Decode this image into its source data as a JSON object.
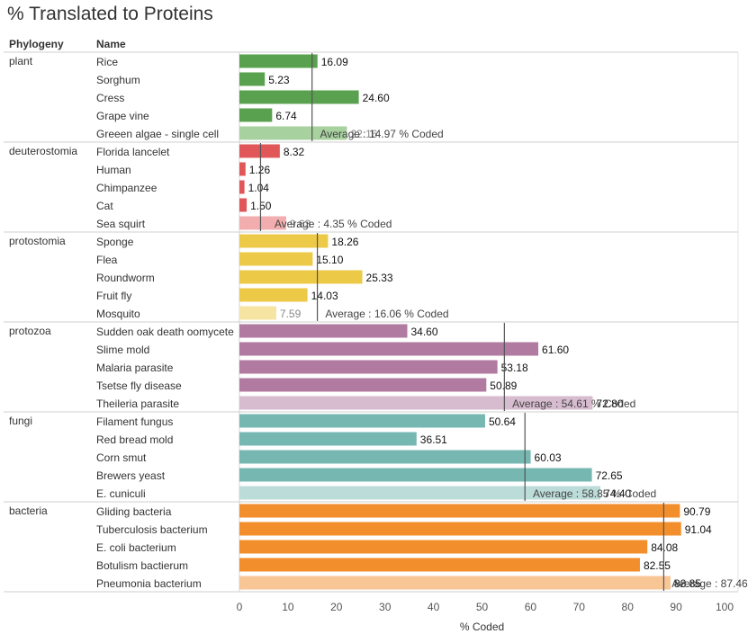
{
  "title": "% Translated to Proteins",
  "headers": {
    "phylogeny": "Phylogeny",
    "name": "Name"
  },
  "chart_data": {
    "type": "bar",
    "orientation": "horizontal",
    "xlabel": "% Coded",
    "xlim": [
      0,
      100
    ],
    "xticks": [
      0,
      10,
      20,
      30,
      40,
      50,
      60,
      70,
      80,
      90,
      100
    ],
    "average_label_prefix": "Average : ",
    "average_label_suffix": " % Coded",
    "groups": [
      {
        "name": "plant",
        "color": "#59a14f",
        "light_color": "#a8d1a0",
        "average": 14.97,
        "average_text": "14.97",
        "items": [
          {
            "name": "Rice",
            "value": 16.09,
            "label": "16.09"
          },
          {
            "name": "Sorghum",
            "value": 5.23,
            "label": "5.23"
          },
          {
            "name": "Cress",
            "value": 24.6,
            "label": "24.60"
          },
          {
            "name": "Grape vine",
            "value": 6.74,
            "label": "6.74"
          },
          {
            "name": "Greeen algae - single cell",
            "value": 22.16,
            "label": "22.16"
          }
        ]
      },
      {
        "name": "deuterostomia",
        "color": "#e15759",
        "light_color": "#f2adae",
        "average": 4.35,
        "average_text": "4.35",
        "items": [
          {
            "name": "Florida lancelet",
            "value": 8.32,
            "label": "8.32"
          },
          {
            "name": "Human",
            "value": 1.26,
            "label": "1.26"
          },
          {
            "name": "Chimpanzee",
            "value": 1.04,
            "label": "1.04"
          },
          {
            "name": "Cat",
            "value": 1.5,
            "label": "1.50"
          },
          {
            "name": "Sea squirt",
            "value": 9.63,
            "label": "9.63"
          }
        ]
      },
      {
        "name": "protostomia",
        "color": "#edc948",
        "light_color": "#f6e4a3",
        "average": 16.06,
        "average_text": "16.06",
        "items": [
          {
            "name": "Sponge",
            "value": 18.26,
            "label": "18.26"
          },
          {
            "name": "Flea",
            "value": 15.1,
            "label": "15.10"
          },
          {
            "name": "Roundworm",
            "value": 25.33,
            "label": "25.33"
          },
          {
            "name": "Fruit fly",
            "value": 14.03,
            "label": "14.03"
          },
          {
            "name": "Mosquito",
            "value": 7.59,
            "label": "7.59"
          }
        ]
      },
      {
        "name": "protozoa",
        "color": "#b07aa1",
        "light_color": "#d7bcd0",
        "average": 54.61,
        "average_text": "54.61",
        "items": [
          {
            "name": "Sudden oak death oomycete",
            "value": 34.6,
            "label": "34.60"
          },
          {
            "name": "Slime mold",
            "value": 61.6,
            "label": "61.60"
          },
          {
            "name": "Malaria parasite",
            "value": 53.18,
            "label": "53.18"
          },
          {
            "name": "Tsetse fly disease",
            "value": 50.89,
            "label": "50.89"
          },
          {
            "name": "Theileria parasite",
            "value": 72.8,
            "label": "72.80"
          }
        ]
      },
      {
        "name": "fungi",
        "color": "#76b7b2",
        "light_color": "#bcdcd9",
        "average": 58.85,
        "average_text": "58.85",
        "items": [
          {
            "name": "Filament fungus",
            "value": 50.64,
            "label": "50.64"
          },
          {
            "name": "Red bread mold",
            "value": 36.51,
            "label": "36.51"
          },
          {
            "name": "Corn smut",
            "value": 60.03,
            "label": "60.03"
          },
          {
            "name": "Brewers yeast",
            "value": 72.65,
            "label": "72.65"
          },
          {
            "name": "E. cuniculi",
            "value": 74.4,
            "label": "74.40"
          }
        ]
      },
      {
        "name": "bacteria",
        "color": "#f28e2b",
        "light_color": "#f8c595",
        "average": 87.46,
        "average_text": "87.46",
        "items": [
          {
            "name": "Gliding bacteria",
            "value": 90.79,
            "label": "90.79"
          },
          {
            "name": "Tuberculosis bacterium",
            "value": 91.04,
            "label": "91.04"
          },
          {
            "name": "E. coli bacterium",
            "value": 84.08,
            "label": "84.08"
          },
          {
            "name": "Botulism bactierum",
            "value": 82.55,
            "label": "82.55"
          },
          {
            "name": "Pneumonia bacterium",
            "value": 88.85,
            "label": "88.85"
          }
        ]
      }
    ]
  }
}
